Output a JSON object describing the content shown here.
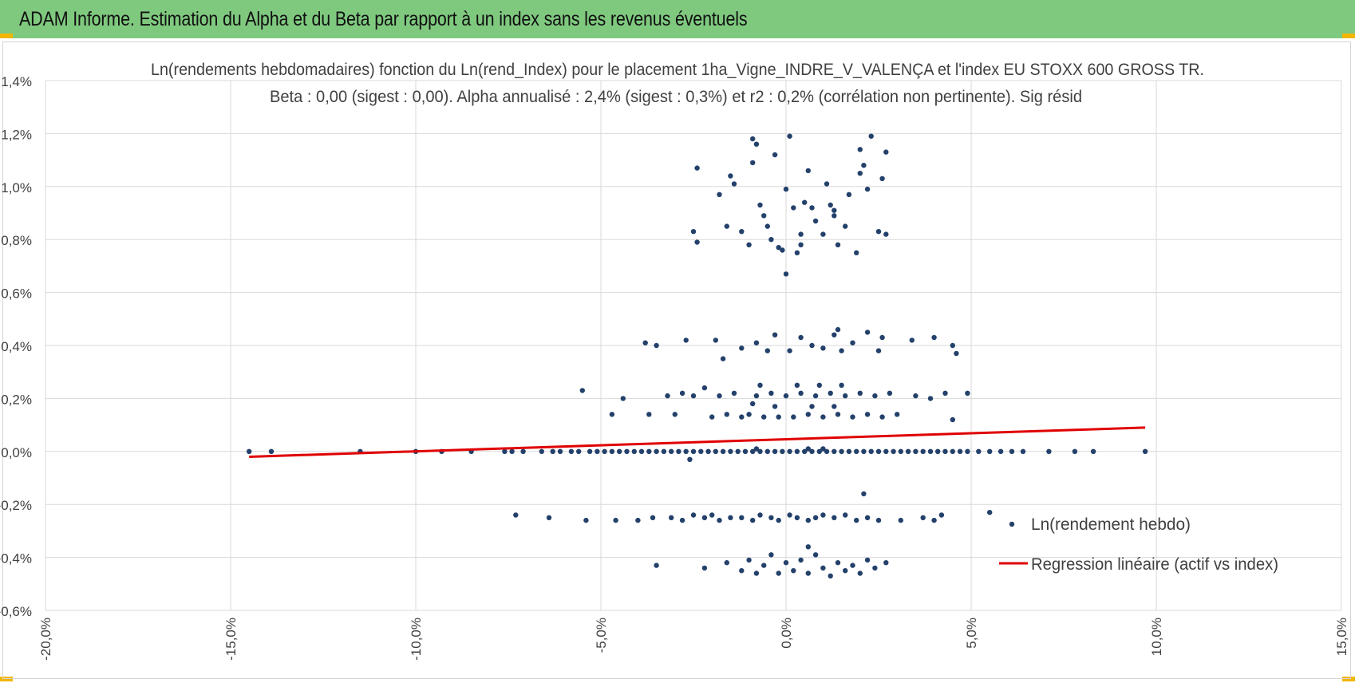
{
  "banner": {
    "title": "ADAM Informe. Estimation du Alpha et du Beta par rapport à un index sans les revenus éventuels"
  },
  "colors": {
    "banner": "#7fc97f",
    "corner": "#f2b600",
    "points": "#23416b",
    "regression": "#e00000",
    "grid": "#d9d9d9"
  },
  "chart_data": {
    "type": "scatter",
    "title": "Ln(rendements hebdomadaires) fonction du Ln(rend_Index) pour le placement 1ha_Vigne_INDRE_V_VALENÇA et l'index EU STOXX 600 GROSS TR.",
    "subtitle": "Beta : 0,00 (sigest : 0,00). Alpha annualisé : 2,4% (sigest : 0,3%) et r2 : 0,2% (corrélation non pertinente). Sig résid",
    "xlabel": "",
    "ylabel": "",
    "xlim": [
      -0.2,
      0.15
    ],
    "ylim": [
      -0.006,
      0.014
    ],
    "x_ticks": [
      -0.2,
      -0.15,
      -0.1,
      -0.05,
      0.0,
      0.05,
      0.1,
      0.15
    ],
    "x_tick_labels": [
      "-20,0%",
      "-15,0%",
      "-10,0%",
      "-5,0%",
      "0,0%",
      "5,0%",
      "10,0%",
      "15,0%"
    ],
    "y_ticks": [
      -0.006,
      -0.004,
      -0.002,
      0.0,
      0.002,
      0.004,
      0.006,
      0.008,
      0.01,
      0.012,
      0.014
    ],
    "y_tick_labels": [
      "-0,6%",
      "-0,4%",
      "-0,2%",
      "0,0%",
      "0,2%",
      "0,4%",
      "0,6%",
      "0,8%",
      "1,0%",
      "1,2%",
      "1,4%"
    ],
    "grid": true,
    "legend_position": "bottom-right",
    "series": [
      {
        "name": "Ln(rendement hebdo)",
        "type": "scatter",
        "points": [
          [
            -0.145,
            0.0
          ],
          [
            -0.139,
            0.0
          ],
          [
            -0.115,
            0.0
          ],
          [
            -0.1,
            0.0
          ],
          [
            -0.093,
            0.0
          ],
          [
            -0.085,
            0.0
          ],
          [
            -0.076,
            0.0
          ],
          [
            -0.074,
            0.0
          ],
          [
            -0.071,
            0.0
          ],
          [
            -0.066,
            0.0
          ],
          [
            -0.063,
            0.0
          ],
          [
            -0.061,
            0.0
          ],
          [
            -0.058,
            0.0
          ],
          [
            -0.056,
            0.0
          ],
          [
            -0.053,
            0.0
          ],
          [
            -0.051,
            0.0
          ],
          [
            -0.049,
            0.0
          ],
          [
            -0.047,
            0.0
          ],
          [
            -0.045,
            0.0
          ],
          [
            -0.043,
            0.0
          ],
          [
            -0.041,
            0.0
          ],
          [
            -0.039,
            0.0
          ],
          [
            -0.037,
            0.0
          ],
          [
            -0.035,
            0.0
          ],
          [
            -0.033,
            0.0
          ],
          [
            -0.031,
            0.0
          ],
          [
            -0.029,
            0.0
          ],
          [
            -0.027,
            0.0
          ],
          [
            -0.025,
            0.0
          ],
          [
            -0.023,
            0.0
          ],
          [
            -0.021,
            0.0
          ],
          [
            -0.019,
            0.0
          ],
          [
            -0.017,
            0.0
          ],
          [
            -0.015,
            0.0
          ],
          [
            -0.013,
            0.0
          ],
          [
            -0.011,
            0.0
          ],
          [
            -0.009,
            0.0
          ],
          [
            -0.007,
            0.0
          ],
          [
            -0.005,
            0.0
          ],
          [
            -0.003,
            0.0
          ],
          [
            -0.001,
            0.0
          ],
          [
            0.001,
            0.0
          ],
          [
            0.003,
            0.0
          ],
          [
            0.005,
            0.0
          ],
          [
            0.007,
            0.0
          ],
          [
            0.009,
            0.0
          ],
          [
            0.011,
            0.0
          ],
          [
            0.013,
            0.0
          ],
          [
            0.015,
            0.0
          ],
          [
            0.017,
            0.0
          ],
          [
            0.019,
            0.0
          ],
          [
            0.021,
            0.0
          ],
          [
            0.023,
            0.0
          ],
          [
            0.025,
            0.0
          ],
          [
            0.027,
            0.0
          ],
          [
            0.029,
            0.0
          ],
          [
            0.031,
            0.0
          ],
          [
            0.033,
            0.0
          ],
          [
            0.035,
            0.0
          ],
          [
            0.037,
            0.0
          ],
          [
            0.039,
            0.0
          ],
          [
            0.041,
            0.0
          ],
          [
            0.043,
            0.0
          ],
          [
            0.045,
            0.0
          ],
          [
            0.047,
            0.0
          ],
          [
            0.049,
            0.0
          ],
          [
            0.052,
            0.0
          ],
          [
            0.055,
            0.0
          ],
          [
            0.058,
            0.0
          ],
          [
            0.061,
            0.0
          ],
          [
            0.064,
            0.0
          ],
          [
            0.071,
            0.0
          ],
          [
            0.078,
            0.0
          ],
          [
            0.083,
            0.0
          ],
          [
            0.097,
            0.0
          ],
          [
            -0.026,
            -0.0003
          ],
          [
            0.01,
            0.0001
          ],
          [
            -0.008,
            0.0001
          ],
          [
            0.006,
            0.0001
          ],
          [
            -0.055,
            0.0023
          ],
          [
            -0.047,
            0.0014
          ],
          [
            -0.044,
            0.002
          ],
          [
            -0.037,
            0.0014
          ],
          [
            -0.032,
            0.0021
          ],
          [
            -0.03,
            0.0014
          ],
          [
            -0.028,
            0.0022
          ],
          [
            -0.025,
            0.0021
          ],
          [
            -0.022,
            0.0024
          ],
          [
            -0.02,
            0.0013
          ],
          [
            -0.018,
            0.0021
          ],
          [
            -0.016,
            0.0014
          ],
          [
            -0.014,
            0.0022
          ],
          [
            -0.012,
            0.0013
          ],
          [
            -0.01,
            0.0014
          ],
          [
            -0.008,
            0.0021
          ],
          [
            -0.006,
            0.0013
          ],
          [
            -0.004,
            0.0022
          ],
          [
            -0.002,
            0.0013
          ],
          [
            0.0,
            0.0021
          ],
          [
            0.002,
            0.0013
          ],
          [
            0.004,
            0.0022
          ],
          [
            0.006,
            0.0014
          ],
          [
            0.008,
            0.0021
          ],
          [
            0.01,
            0.0013
          ],
          [
            0.012,
            0.0022
          ],
          [
            0.014,
            0.0014
          ],
          [
            0.016,
            0.0021
          ],
          [
            0.018,
            0.0013
          ],
          [
            0.02,
            0.0022
          ],
          [
            0.022,
            0.0014
          ],
          [
            0.024,
            0.0021
          ],
          [
            0.026,
            0.0013
          ],
          [
            0.028,
            0.0022
          ],
          [
            0.03,
            0.0014
          ],
          [
            0.035,
            0.0021
          ],
          [
            0.039,
            0.002
          ],
          [
            0.043,
            0.0022
          ],
          [
            0.049,
            0.0022
          ],
          [
            0.045,
            0.0012
          ],
          [
            -0.007,
            0.0025
          ],
          [
            0.003,
            0.0025
          ],
          [
            0.009,
            0.0025
          ],
          [
            0.015,
            0.0025
          ],
          [
            -0.009,
            0.0018
          ],
          [
            0.007,
            0.0017
          ],
          [
            0.013,
            0.0017
          ],
          [
            -0.003,
            0.0017
          ],
          [
            -0.038,
            0.0041
          ],
          [
            -0.035,
            0.004
          ],
          [
            -0.027,
            0.0042
          ],
          [
            -0.017,
            0.0035
          ],
          [
            -0.012,
            0.0039
          ],
          [
            -0.008,
            0.0041
          ],
          [
            -0.005,
            0.0038
          ],
          [
            -0.003,
            0.0044
          ],
          [
            0.001,
            0.0038
          ],
          [
            0.004,
            0.0043
          ],
          [
            0.007,
            0.004
          ],
          [
            0.01,
            0.0039
          ],
          [
            0.013,
            0.0044
          ],
          [
            0.015,
            0.0038
          ],
          [
            0.018,
            0.0041
          ],
          [
            0.022,
            0.0045
          ],
          [
            0.025,
            0.0038
          ],
          [
            0.034,
            0.0042
          ],
          [
            0.04,
            0.0043
          ],
          [
            0.045,
            0.004
          ],
          [
            0.046,
            0.0037
          ],
          [
            0.014,
            0.0046
          ],
          [
            0.026,
            0.0043
          ],
          [
            -0.019,
            0.0042
          ],
          [
            -0.025,
            0.0083
          ],
          [
            -0.024,
            0.0079
          ],
          [
            -0.024,
            0.0107
          ],
          [
            -0.018,
            0.0097
          ],
          [
            -0.016,
            0.0085
          ],
          [
            -0.015,
            0.0104
          ],
          [
            -0.014,
            0.0101
          ],
          [
            -0.012,
            0.0083
          ],
          [
            -0.01,
            0.0078
          ],
          [
            -0.009,
            0.0109
          ],
          [
            -0.009,
            0.0118
          ],
          [
            -0.008,
            0.0116
          ],
          [
            -0.007,
            0.0093
          ],
          [
            -0.006,
            0.0089
          ],
          [
            -0.005,
            0.0085
          ],
          [
            -0.004,
            0.008
          ],
          [
            -0.003,
            0.0112
          ],
          [
            -0.002,
            0.0077
          ],
          [
            -0.001,
            0.0076
          ],
          [
            0.0,
            0.0099
          ],
          [
            0.001,
            0.0119
          ],
          [
            0.002,
            0.0092
          ],
          [
            0.003,
            0.0075
          ],
          [
            0.004,
            0.0082
          ],
          [
            0.005,
            0.0094
          ],
          [
            0.006,
            0.0106
          ],
          [
            0.007,
            0.0092
          ],
          [
            0.008,
            0.0087
          ],
          [
            0.01,
            0.0082
          ],
          [
            0.011,
            0.0101
          ],
          [
            0.012,
            0.0093
          ],
          [
            0.013,
            0.0089
          ],
          [
            0.014,
            0.0078
          ],
          [
            0.016,
            0.0085
          ],
          [
            0.017,
            0.0097
          ],
          [
            0.019,
            0.0075
          ],
          [
            0.02,
            0.0114
          ],
          [
            0.021,
            0.0108
          ],
          [
            0.022,
            0.0099
          ],
          [
            0.023,
            0.0119
          ],
          [
            0.025,
            0.0083
          ],
          [
            0.026,
            0.0103
          ],
          [
            0.027,
            0.0113
          ],
          [
            0.027,
            0.0082
          ],
          [
            0.0,
            0.0067
          ],
          [
            0.004,
            0.0078
          ],
          [
            0.02,
            0.0105
          ],
          [
            0.013,
            0.0091
          ],
          [
            -0.073,
            -0.0024
          ],
          [
            -0.064,
            -0.0025
          ],
          [
            -0.054,
            -0.0026
          ],
          [
            -0.046,
            -0.0026
          ],
          [
            -0.04,
            -0.0026
          ],
          [
            -0.036,
            -0.0025
          ],
          [
            -0.031,
            -0.0025
          ],
          [
            -0.028,
            -0.0026
          ],
          [
            -0.025,
            -0.0024
          ],
          [
            -0.022,
            -0.0025
          ],
          [
            -0.02,
            -0.0024
          ],
          [
            -0.018,
            -0.0026
          ],
          [
            -0.015,
            -0.0025
          ],
          [
            -0.012,
            -0.0025
          ],
          [
            -0.009,
            -0.0026
          ],
          [
            -0.007,
            -0.0024
          ],
          [
            -0.004,
            -0.0025
          ],
          [
            -0.002,
            -0.0026
          ],
          [
            0.001,
            -0.0024
          ],
          [
            0.003,
            -0.0025
          ],
          [
            0.006,
            -0.0026
          ],
          [
            0.008,
            -0.0025
          ],
          [
            0.01,
            -0.0024
          ],
          [
            0.013,
            -0.0025
          ],
          [
            0.016,
            -0.0024
          ],
          [
            0.019,
            -0.0026
          ],
          [
            0.022,
            -0.0025
          ],
          [
            0.025,
            -0.0026
          ],
          [
            0.031,
            -0.0026
          ],
          [
            0.037,
            -0.0025
          ],
          [
            0.04,
            -0.0026
          ],
          [
            0.042,
            -0.0024
          ],
          [
            0.055,
            -0.0023
          ],
          [
            0.021,
            -0.0016
          ],
          [
            -0.035,
            -0.0043
          ],
          [
            -0.022,
            -0.0044
          ],
          [
            -0.016,
            -0.0042
          ],
          [
            -0.012,
            -0.0045
          ],
          [
            -0.01,
            -0.0041
          ],
          [
            -0.008,
            -0.0046
          ],
          [
            -0.006,
            -0.0043
          ],
          [
            -0.004,
            -0.0039
          ],
          [
            -0.002,
            -0.0046
          ],
          [
            0.0,
            -0.0042
          ],
          [
            0.002,
            -0.0045
          ],
          [
            0.004,
            -0.0041
          ],
          [
            0.006,
            -0.0046
          ],
          [
            0.008,
            -0.0039
          ],
          [
            0.01,
            -0.0044
          ],
          [
            0.012,
            -0.0047
          ],
          [
            0.014,
            -0.0042
          ],
          [
            0.016,
            -0.0045
          ],
          [
            0.018,
            -0.0043
          ],
          [
            0.02,
            -0.0046
          ],
          [
            0.022,
            -0.0041
          ],
          [
            0.024,
            -0.0044
          ],
          [
            0.027,
            -0.0042
          ],
          [
            0.006,
            -0.0036
          ]
        ]
      },
      {
        "name": "Regression linéaire (actif vs index)",
        "type": "line",
        "points": [
          [
            -0.145,
            -0.0002
          ],
          [
            0.097,
            0.0009
          ]
        ]
      }
    ]
  }
}
